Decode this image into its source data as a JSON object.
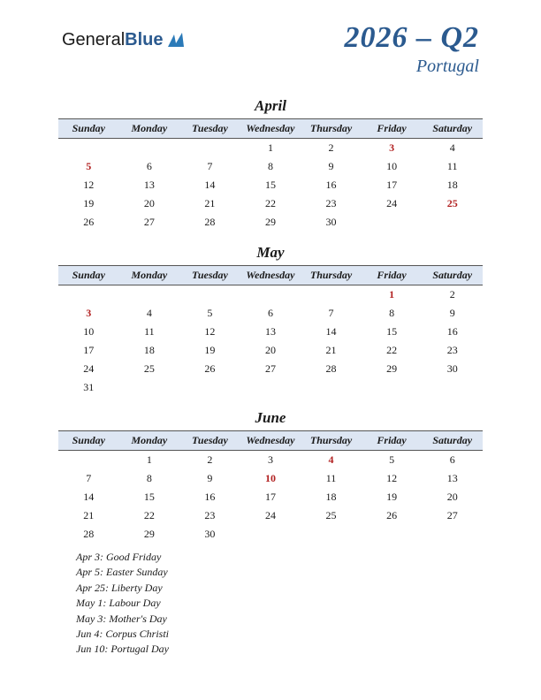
{
  "logo": {
    "text_general": "General",
    "text_blue": "Blue"
  },
  "title": {
    "main": "2026 – Q2",
    "sub": "Portugal"
  },
  "colors": {
    "header_bg": "#dde6f3",
    "header_border": "#555555",
    "text": "#1a1a1a",
    "accent": "#2b5a8f",
    "holiday": "#b22222",
    "background": "#ffffff"
  },
  "day_headers": [
    "Sunday",
    "Monday",
    "Tuesday",
    "Wednesday",
    "Thursday",
    "Friday",
    "Saturday"
  ],
  "months": [
    {
      "name": "April",
      "weeks": [
        [
          "",
          "",
          "",
          "1",
          "2",
          "3",
          "4"
        ],
        [
          "5",
          "6",
          "7",
          "8",
          "9",
          "10",
          "11"
        ],
        [
          "12",
          "13",
          "14",
          "15",
          "16",
          "17",
          "18"
        ],
        [
          "19",
          "20",
          "21",
          "22",
          "23",
          "24",
          "25"
        ],
        [
          "26",
          "27",
          "28",
          "29",
          "30",
          "",
          ""
        ]
      ],
      "holidays": [
        "3",
        "5",
        "25"
      ]
    },
    {
      "name": "May",
      "weeks": [
        [
          "",
          "",
          "",
          "",
          "",
          "1",
          "2"
        ],
        [
          "3",
          "4",
          "5",
          "6",
          "7",
          "8",
          "9"
        ],
        [
          "10",
          "11",
          "12",
          "13",
          "14",
          "15",
          "16"
        ],
        [
          "17",
          "18",
          "19",
          "20",
          "21",
          "22",
          "23"
        ],
        [
          "24",
          "25",
          "26",
          "27",
          "28",
          "29",
          "30"
        ],
        [
          "31",
          "",
          "",
          "",
          "",
          "",
          ""
        ]
      ],
      "holidays": [
        "1",
        "3"
      ]
    },
    {
      "name": "June",
      "weeks": [
        [
          "",
          "1",
          "2",
          "3",
          "4",
          "5",
          "6"
        ],
        [
          "7",
          "8",
          "9",
          "10",
          "11",
          "12",
          "13"
        ],
        [
          "14",
          "15",
          "16",
          "17",
          "18",
          "19",
          "20"
        ],
        [
          "21",
          "22",
          "23",
          "24",
          "25",
          "26",
          "27"
        ],
        [
          "28",
          "29",
          "30",
          "",
          "",
          "",
          ""
        ]
      ],
      "holidays": [
        "4",
        "10"
      ]
    }
  ],
  "holiday_list": [
    "Apr 3: Good Friday",
    "Apr 5: Easter Sunday",
    "Apr 25: Liberty Day",
    "May 1: Labour Day",
    "May 3: Mother's Day",
    "Jun 4: Corpus Christi",
    "Jun 10: Portugal Day"
  ]
}
